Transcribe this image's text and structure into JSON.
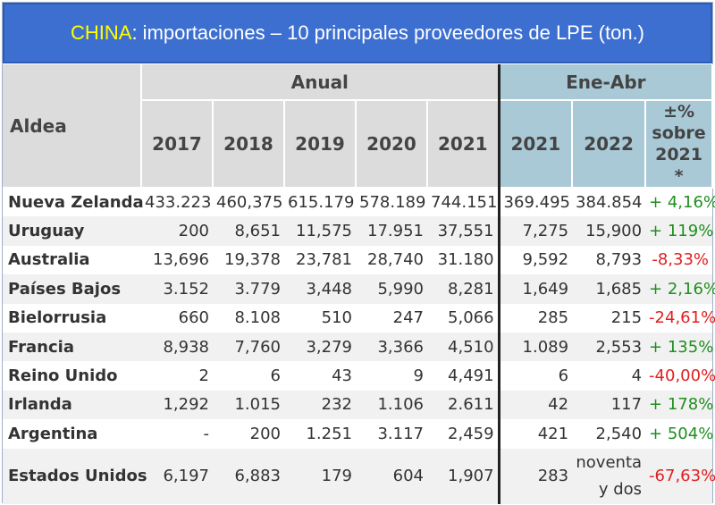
{
  "title": {
    "country": "CHINA",
    "rest": ": importaciones – 10 principales proveedores de LPE (ton.)"
  },
  "header": {
    "col_label": "Aldea",
    "annual_group": "Anual",
    "period_group": "Ene-Abr",
    "annual_years": [
      "2017",
      "2018",
      "2019",
      "2020",
      "2021"
    ],
    "period_years": [
      "2021",
      "2022"
    ],
    "change_label": "±% sobre 2021 *"
  },
  "rows": [
    {
      "name": "Nueva Zelanda",
      "y2017": "433.223",
      "y2018": "460,375",
      "y2019": "615.179",
      "y2020": "578.189",
      "y2021": "744.151",
      "p2021": "369.495",
      "p2022": "384.854",
      "change": "+ 4,16%"
    },
    {
      "name": "Uruguay",
      "y2017": "200",
      "y2018": "8,651",
      "y2019": "11,575",
      "y2020": "17.951",
      "y2021": "37,551",
      "p2021": "7,275",
      "p2022": "15,900",
      "change": "+ 119%"
    },
    {
      "name": "Australia",
      "y2017": "13,696",
      "y2018": "19,378",
      "y2019": "23,781",
      "y2020": "28,740",
      "y2021": "31.180",
      "p2021": "9,592",
      "p2022": "8,793",
      "change": "-8,33%"
    },
    {
      "name": "Países Bajos",
      "y2017": "3.152",
      "y2018": "3.779",
      "y2019": "3,448",
      "y2020": "5,990",
      "y2021": "8,281",
      "p2021": "1,649",
      "p2022": "1,685",
      "change": "+ 2,16%"
    },
    {
      "name": "Bielorrusia",
      "y2017": "660",
      "y2018": "8.108",
      "y2019": "510",
      "y2020": "247",
      "y2021": "5,066",
      "p2021": "285",
      "p2022": "215",
      "change": "-24,61%"
    },
    {
      "name": "Francia",
      "y2017": "8,938",
      "y2018": "7,760",
      "y2019": "3,279",
      "y2020": "3,366",
      "y2021": "4,510",
      "p2021": "1.089",
      "p2022": "2,553",
      "change": "+ 135%"
    },
    {
      "name": "Reino Unido",
      "y2017": "2",
      "y2018": "6",
      "y2019": "43",
      "y2020": "9",
      "y2021": "4,491",
      "p2021": "6",
      "p2022": "4",
      "change": "-40,00%"
    },
    {
      "name": "Irlanda",
      "y2017": "1,292",
      "y2018": "1.015",
      "y2019": "232",
      "y2020": "1.106",
      "y2021": "2.611",
      "p2021": "42",
      "p2022": "117",
      "change": "+ 178%"
    },
    {
      "name": "Argentina",
      "y2017": "-",
      "y2018": "200",
      "y2019": "1.251",
      "y2020": "3.117",
      "y2021": "2,459",
      "p2021": "421",
      "p2022": "2,540",
      "change": "+ 504%"
    },
    {
      "name": "Estados Unidos",
      "y2017": "6,197",
      "y2018": "6,883",
      "y2019": "179",
      "y2020": "604",
      "y2021": "1,907",
      "p2021": "283",
      "p2022": "noventa y dos",
      "change": "-67,63%"
    }
  ],
  "colors": {
    "title_bg": "#3d6fd0",
    "title_country": "#ffff00",
    "header_grey": "#dcdcdc",
    "header_blue": "#a9c9d6",
    "positive": "#1f8f1f",
    "negative": "#e02020"
  }
}
